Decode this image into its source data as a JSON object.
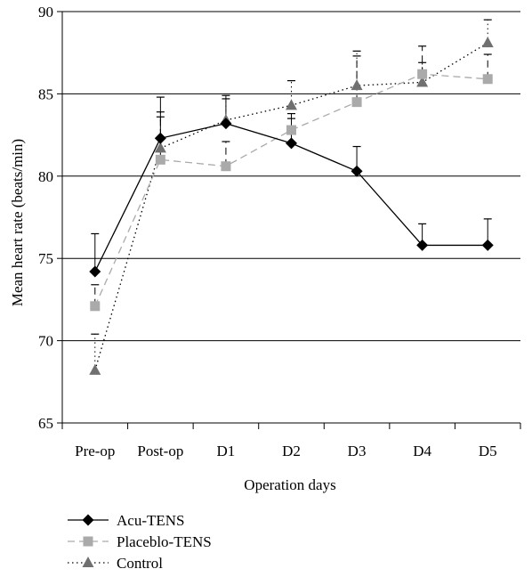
{
  "chart_data": {
    "type": "line",
    "title": "",
    "xlabel": "Operation days",
    "ylabel": "Mean heart rate (beats/min)",
    "categories": [
      "Pre-op",
      "Post-op",
      "D1",
      "D2",
      "D3",
      "D4",
      "D5"
    ],
    "ylim": [
      65,
      90
    ],
    "yticks": [
      65,
      70,
      75,
      80,
      85,
      90
    ],
    "grid": "horizontal",
    "legend_position": "bottom-left",
    "series": [
      {
        "name": "Acu-TENS",
        "values": [
          74.2,
          82.3,
          83.2,
          82.0,
          80.3,
          75.8,
          75.8
        ],
        "error_upper": [
          76.5,
          84.8,
          84.9,
          83.5,
          81.8,
          77.1,
          77.4
        ],
        "color": "#000000",
        "marker": "diamond",
        "line": "solid"
      },
      {
        "name": "Placeblo-TENS",
        "values": [
          72.1,
          81.0,
          80.6,
          82.8,
          84.5,
          86.2,
          85.9
        ],
        "error_upper": [
          73.4,
          83.9,
          82.1,
          83.8,
          87.3,
          87.9,
          87.4
        ],
        "color": "#aaaaaa",
        "marker": "square",
        "line": "dashed"
      },
      {
        "name": "Control",
        "values": [
          68.2,
          81.7,
          83.4,
          84.3,
          85.5,
          85.7,
          88.1
        ],
        "error_upper": [
          70.4,
          83.6,
          84.7,
          85.8,
          87.6,
          86.9,
          89.5
        ],
        "color": "#707070",
        "marker": "triangle",
        "line": "dotted"
      }
    ]
  }
}
